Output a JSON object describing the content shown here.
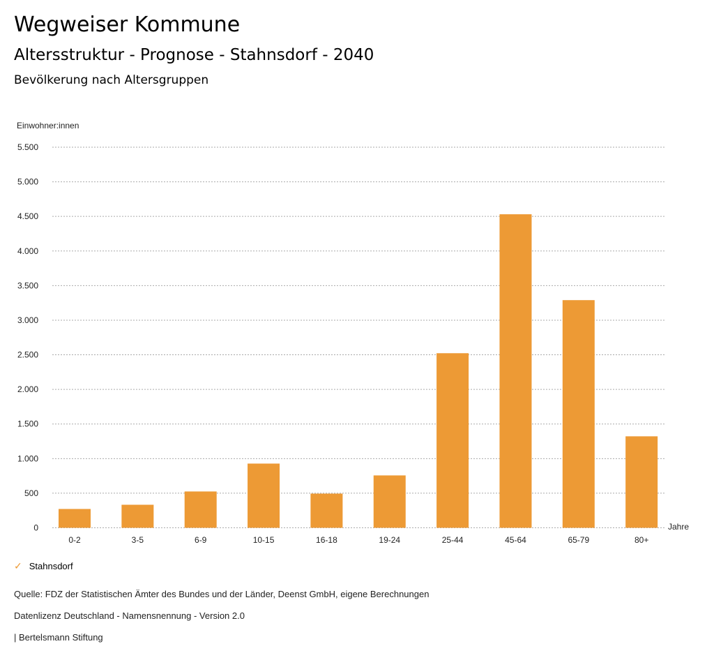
{
  "header": {
    "title": "Wegweiser Kommune",
    "subtitle": "Altersstruktur - Prognose - Stahnsdorf - 2040",
    "chart_title": "Bevölkerung nach Altersgruppen"
  },
  "chart_data": {
    "type": "bar",
    "title": "Bevölkerung nach Altersgruppen",
    "xlabel": "Jahre",
    "ylabel": "Einwohner:innen",
    "ylim": [
      0,
      5500
    ],
    "yticks": [
      0,
      500,
      1000,
      1500,
      2000,
      2500,
      3000,
      3500,
      4000,
      4500,
      5000,
      5500
    ],
    "ytick_labels": [
      "0",
      "500",
      "1.000",
      "1.500",
      "2.000",
      "2.500",
      "3.000",
      "3.500",
      "4.000",
      "4.500",
      "5.000",
      "5.500"
    ],
    "categories": [
      "0-2",
      "3-5",
      "6-9",
      "10-15",
      "16-18",
      "19-24",
      "25-44",
      "45-64",
      "65-79",
      "80+"
    ],
    "series": [
      {
        "name": "Stahnsdorf",
        "values": [
          272,
          333,
          525,
          928,
          494,
          757,
          2523,
          4531,
          3290,
          1322
        ],
        "color": "#ed9a35"
      }
    ],
    "grid": true,
    "legend": "bottom-left"
  },
  "footer": {
    "source": "Quelle: FDZ der Statistischen Ämter des Bundes und der Länder, Deenst GmbH, eigene Berechnungen",
    "license": "Datenlizenz Deutschland - Namensnennung - Version 2.0",
    "brand": "| Bertelsmann Stiftung"
  }
}
